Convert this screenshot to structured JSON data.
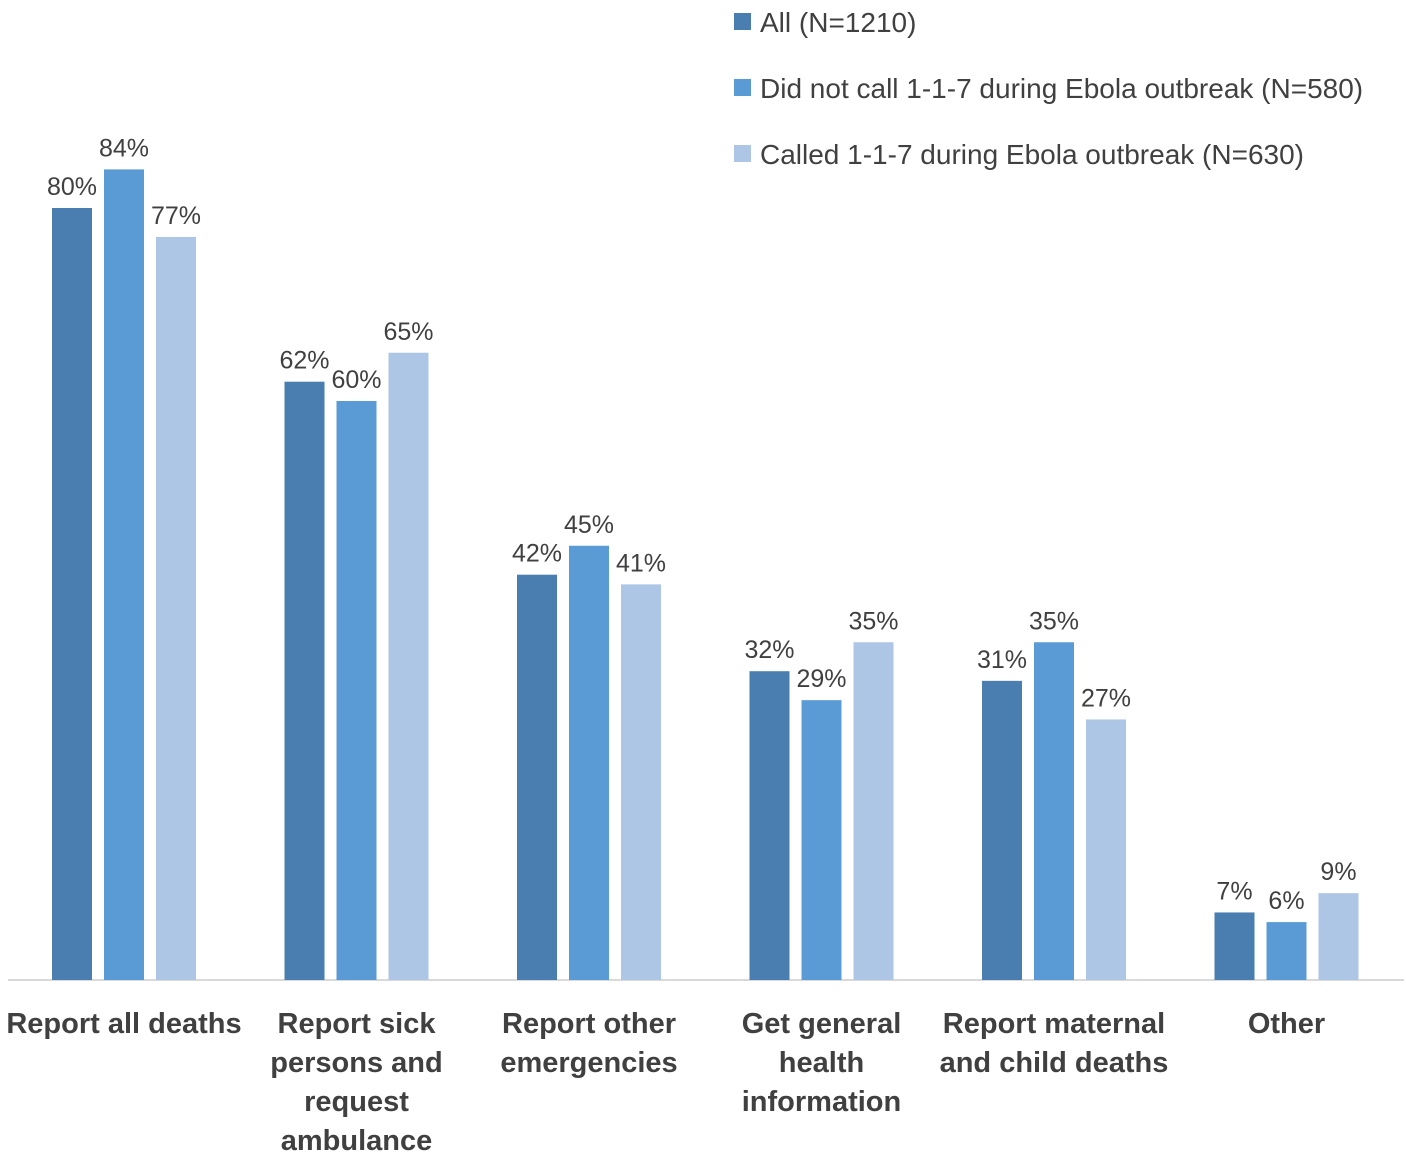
{
  "chart_data": {
    "type": "bar",
    "title": "",
    "xlabel": "",
    "ylabel": "",
    "ylim": [
      0,
      90
    ],
    "grid": false,
    "legend_position": "top-right",
    "categories": [
      [
        "Report all deaths"
      ],
      [
        "Report sick",
        "persons and",
        "request",
        "ambulance"
      ],
      [
        "Report other",
        "emergencies"
      ],
      [
        "Get general",
        "health",
        "information"
      ],
      [
        "Report maternal",
        "and child deaths"
      ],
      [
        "Other"
      ]
    ],
    "series": [
      {
        "name": "All (N=1210)",
        "color": "#4a7eb0",
        "values": [
          80,
          62,
          42,
          32,
          31,
          7
        ],
        "labels": [
          "80%",
          "62%",
          "42%",
          "32%",
          "31%",
          "7%"
        ]
      },
      {
        "name": "Did not call 1-1-7 during Ebola outbreak (N=580)",
        "color": "#5b9bd5",
        "values": [
          84,
          60,
          45,
          29,
          35,
          6
        ],
        "labels": [
          "84%",
          "60%",
          "45%",
          "29%",
          "35%",
          "6%"
        ]
      },
      {
        "name": "Called 1-1-7 during Ebola outbreak (N=630)",
        "color": "#aec6e6",
        "values": [
          77,
          65,
          41,
          35,
          27,
          9
        ],
        "labels": [
          "77%",
          "65%",
          "41%",
          "35%",
          "27%",
          "9%"
        ]
      }
    ]
  }
}
